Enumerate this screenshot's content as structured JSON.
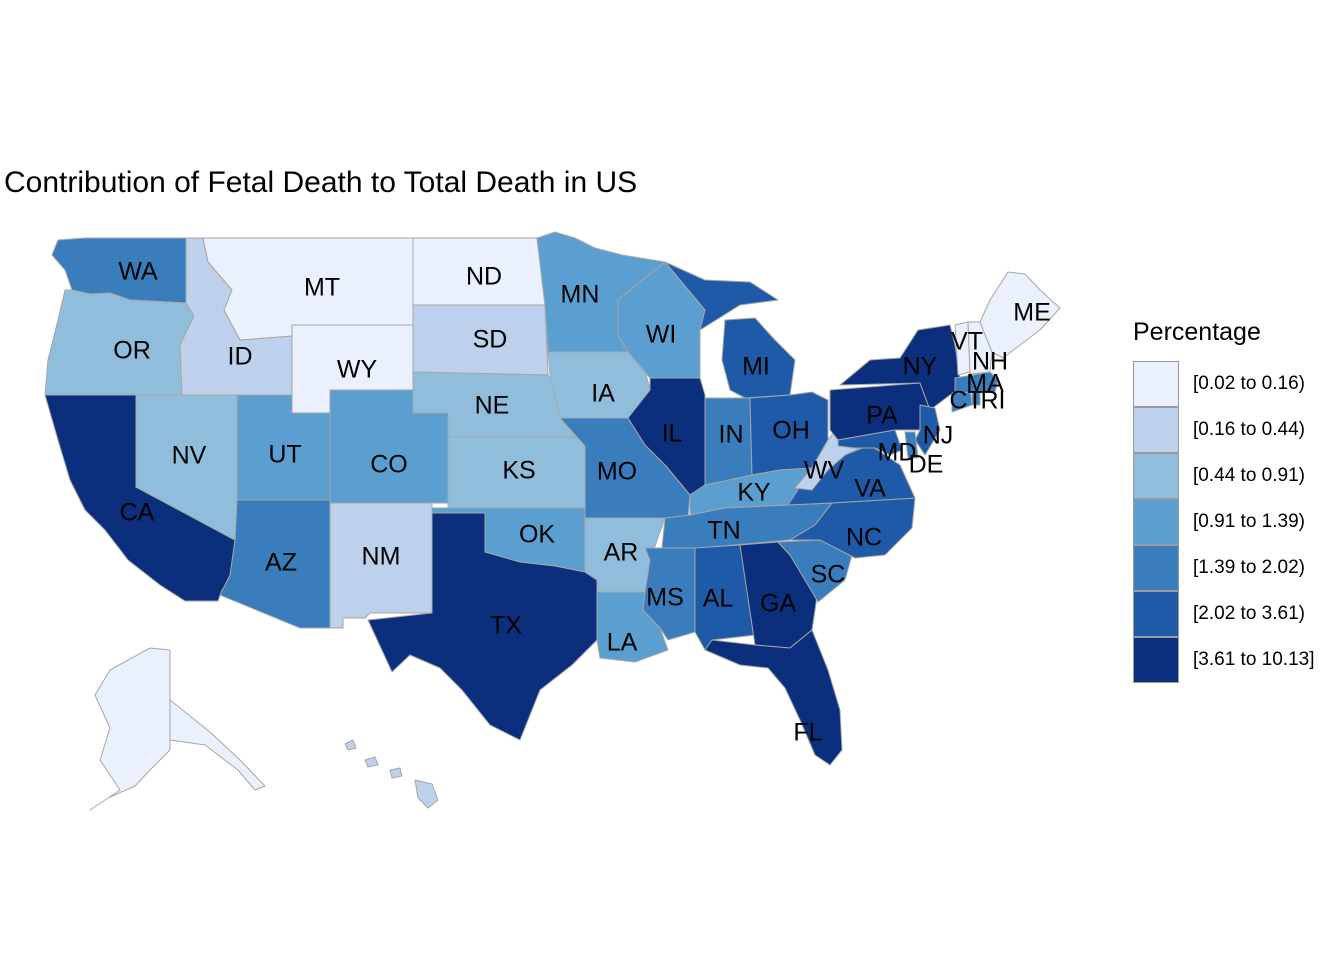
{
  "title": "Contribution of Fetal Death to Total Death in US",
  "legend": {
    "title": "Percentage",
    "bins": [
      {
        "label": "[0.02 to 0.16)",
        "color": "#eaf0fd"
      },
      {
        "label": "[0.16 to 0.44)",
        "color": "#bdd1ec"
      },
      {
        "label": "[0.44 to 0.91)",
        "color": "#91bddc"
      },
      {
        "label": "[0.91 to 1.39)",
        "color": "#5b9fd0"
      },
      {
        "label": "[1.39 to 2.02)",
        "color": "#3a7dbd"
      },
      {
        "label": "[2.02 to 3.61)",
        "color": "#1f5aa9"
      },
      {
        "label": "[3.61 to 10.13]",
        "color": "#0b2f7d"
      }
    ]
  },
  "chart_data": {
    "type": "choropleth",
    "title": "Contribution of Fetal Death to Total Death in US",
    "legend_title": "Percentage",
    "legend_position": "right",
    "states": [
      {
        "abbr": "WA",
        "bin": 4
      },
      {
        "abbr": "OR",
        "bin": 2
      },
      {
        "abbr": "CA",
        "bin": 6
      },
      {
        "abbr": "ID",
        "bin": 1
      },
      {
        "abbr": "NV",
        "bin": 2
      },
      {
        "abbr": "MT",
        "bin": 0
      },
      {
        "abbr": "WY",
        "bin": 0
      },
      {
        "abbr": "UT",
        "bin": 3
      },
      {
        "abbr": "AZ",
        "bin": 4
      },
      {
        "abbr": "CO",
        "bin": 3
      },
      {
        "abbr": "NM",
        "bin": 1
      },
      {
        "abbr": "ND",
        "bin": 0
      },
      {
        "abbr": "SD",
        "bin": 1
      },
      {
        "abbr": "NE",
        "bin": 2
      },
      {
        "abbr": "KS",
        "bin": 2
      },
      {
        "abbr": "OK",
        "bin": 3
      },
      {
        "abbr": "TX",
        "bin": 6
      },
      {
        "abbr": "MN",
        "bin": 3
      },
      {
        "abbr": "IA",
        "bin": 2
      },
      {
        "abbr": "MO",
        "bin": 4
      },
      {
        "abbr": "AR",
        "bin": 2
      },
      {
        "abbr": "LA",
        "bin": 3
      },
      {
        "abbr": "WI",
        "bin": 3
      },
      {
        "abbr": "IL",
        "bin": 6
      },
      {
        "abbr": "MI",
        "bin": 5
      },
      {
        "abbr": "IN",
        "bin": 4
      },
      {
        "abbr": "OH",
        "bin": 5
      },
      {
        "abbr": "KY",
        "bin": 3
      },
      {
        "abbr": "TN",
        "bin": 4
      },
      {
        "abbr": "MS",
        "bin": 4
      },
      {
        "abbr": "AL",
        "bin": 5
      },
      {
        "abbr": "GA",
        "bin": 6
      },
      {
        "abbr": "FL",
        "bin": 6
      },
      {
        "abbr": "SC",
        "bin": 4
      },
      {
        "abbr": "NC",
        "bin": 5
      },
      {
        "abbr": "VA",
        "bin": 5
      },
      {
        "abbr": "WV",
        "bin": 1
      },
      {
        "abbr": "PA",
        "bin": 6
      },
      {
        "abbr": "NY",
        "bin": 6
      },
      {
        "abbr": "NJ",
        "bin": 5
      },
      {
        "abbr": "DE",
        "bin": 4
      },
      {
        "abbr": "MD",
        "bin": 5
      },
      {
        "abbr": "CT",
        "bin": 4
      },
      {
        "abbr": "RI",
        "bin": 4
      },
      {
        "abbr": "MA",
        "bin": 4
      },
      {
        "abbr": "VT",
        "bin": 0
      },
      {
        "abbr": "NH",
        "bin": 0
      },
      {
        "abbr": "ME",
        "bin": 0
      },
      {
        "abbr": "AK",
        "bin": 0
      },
      {
        "abbr": "HI",
        "bin": 1
      }
    ]
  }
}
